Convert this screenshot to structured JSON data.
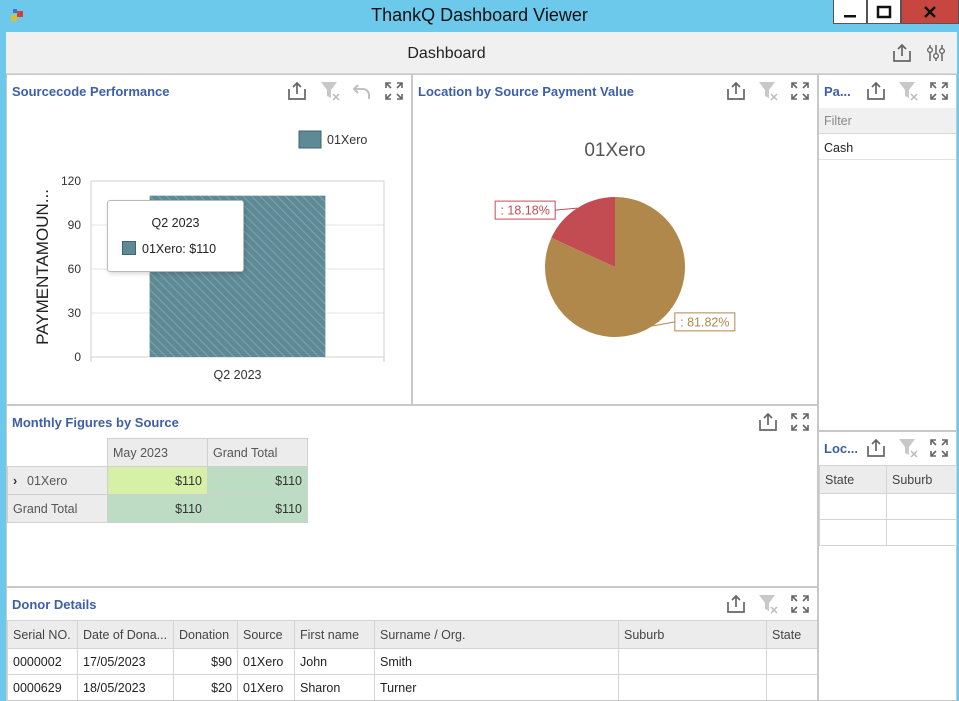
{
  "window": {
    "title": "ThankQ Dashboard Viewer"
  },
  "dashboard": {
    "title": "Dashboard"
  },
  "sourcecode": {
    "title": "Sourcecode Performance",
    "tooltip": {
      "header": "Q2 2023",
      "text": "01Xero: $110"
    }
  },
  "location": {
    "title": "Location by Source Payment Value",
    "pie_title": "01Xero",
    "label_small": ": 18.18%",
    "label_large": ": 81.82%"
  },
  "pa": {
    "title": "Pa...",
    "filter_placeholder": "Filter",
    "items": [
      "Cash"
    ]
  },
  "loc": {
    "title": "Loc...",
    "columns": [
      "State",
      "Suburb"
    ]
  },
  "monthly": {
    "title": "Monthly Figures by Source",
    "columns": [
      "May 2023",
      "Grand Total"
    ],
    "rows": [
      {
        "label": "01Xero",
        "values": [
          "$110",
          "$110"
        ]
      },
      {
        "label": "Grand Total",
        "values": [
          "$110",
          "$110"
        ]
      }
    ]
  },
  "donor": {
    "title": "Donor Details",
    "columns": [
      "Serial NO.",
      "Date of Dona...",
      "Donation",
      "Source",
      "First name",
      "Surname / Org.",
      "Suburb",
      "State"
    ],
    "rows": [
      [
        "0000002",
        "17/05/2023",
        "$90",
        "01Xero",
        "John",
        "Smith",
        "",
        ""
      ],
      [
        "0000629",
        "18/05/2023",
        "$20",
        "01Xero",
        "Sharon",
        "Turner",
        "",
        ""
      ]
    ]
  },
  "colors": {
    "bar": "#5e8a96",
    "pie_large": "#b0884c",
    "pie_small": "#c34c53",
    "title_blue": "#3d5fa6"
  },
  "chart_data": [
    {
      "type": "bar",
      "categories": [
        "Q2 2023"
      ],
      "series": [
        {
          "name": "01Xero",
          "values": [
            110
          ]
        }
      ],
      "ylabel": "PAYMENTAMOUN...",
      "yticks": [
        "0",
        "30",
        "60",
        "90",
        "120"
      ],
      "ylim": [
        0,
        120
      ],
      "legend": "top-right",
      "grid": true
    },
    {
      "type": "pie",
      "title": "01Xero",
      "slices": [
        {
          "label": ": 18.18%",
          "value": 18.18
        },
        {
          "label": ": 81.82%",
          "value": 81.82
        }
      ]
    }
  ]
}
